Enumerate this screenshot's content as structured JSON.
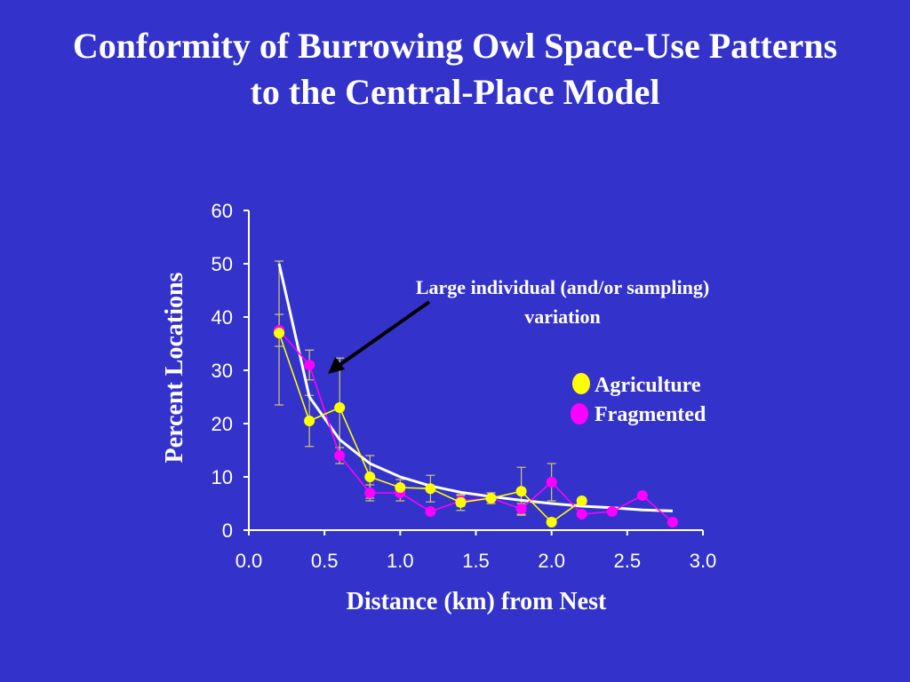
{
  "title_lines": [
    "Conformity of Burrowing Owl Space-Use Patterns",
    "to the Central-Place Model"
  ],
  "colors": {
    "background": "#3333cc",
    "axis": "#ffffff",
    "agriculture": "#ffff00",
    "fragmented": "#ff00ff",
    "model": "#ffffff",
    "arrow": "#000000",
    "errorbar": "#d4c870"
  },
  "annotation": {
    "lines": [
      "Large individual (and/or sampling)",
      "variation"
    ],
    "points_to": [
      0.5,
      30
    ]
  },
  "chart_data": {
    "type": "line",
    "xlabel": "Distance (km) from Nest",
    "ylabel": "Percent Locations",
    "xlim": [
      0,
      3.0
    ],
    "ylim": [
      0,
      60
    ],
    "xticks": [
      "0.0",
      "0.5",
      "1.0",
      "1.5",
      "2.0",
      "2.5",
      "3.0"
    ],
    "yticks": [
      "0",
      "10",
      "20",
      "30",
      "40",
      "50",
      "60"
    ],
    "grid": false,
    "legend_position": "right",
    "series": [
      {
        "name": "Agriculture",
        "marker": "circle",
        "x": [
          0.2,
          0.4,
          0.6,
          0.8,
          1.0,
          1.2,
          1.4,
          1.6,
          1.8,
          2.0,
          2.2
        ],
        "y": [
          37,
          20.5,
          23,
          10,
          8,
          7.8,
          5.2,
          6,
          7.3,
          1.5,
          5.5
        ],
        "error": [
          13.5,
          4.8,
          9.3,
          4,
          1.5,
          2.5,
          1.5,
          1,
          4.5,
          0,
          0
        ]
      },
      {
        "name": "Fragmented",
        "marker": "circle",
        "x": [
          0.2,
          0.4,
          0.6,
          0.8,
          1.0,
          1.2,
          1.4,
          1.6,
          1.8,
          2.0,
          2.2,
          2.4,
          2.6,
          2.8
        ],
        "y": [
          37.5,
          31,
          14,
          7,
          7,
          3.5,
          5.5,
          6,
          4,
          9,
          3,
          3.5,
          6.5,
          1.5
        ],
        "error": [
          3,
          2.8,
          1.5,
          1.5,
          1.5,
          0,
          1,
          1,
          1,
          3.5,
          0,
          0,
          0,
          0
        ]
      },
      {
        "name": "",
        "marker": "none",
        "x": [
          0.2,
          0.4,
          0.6,
          0.8,
          1.0,
          1.2,
          1.4,
          1.6,
          1.8,
          2.0,
          2.2,
          2.4,
          2.6,
          2.8
        ],
        "y": [
          50,
          25,
          17,
          12.5,
          10,
          8.3,
          7.1,
          6.3,
          5.6,
          5,
          4.5,
          4.2,
          3.8,
          3.6
        ]
      }
    ]
  }
}
